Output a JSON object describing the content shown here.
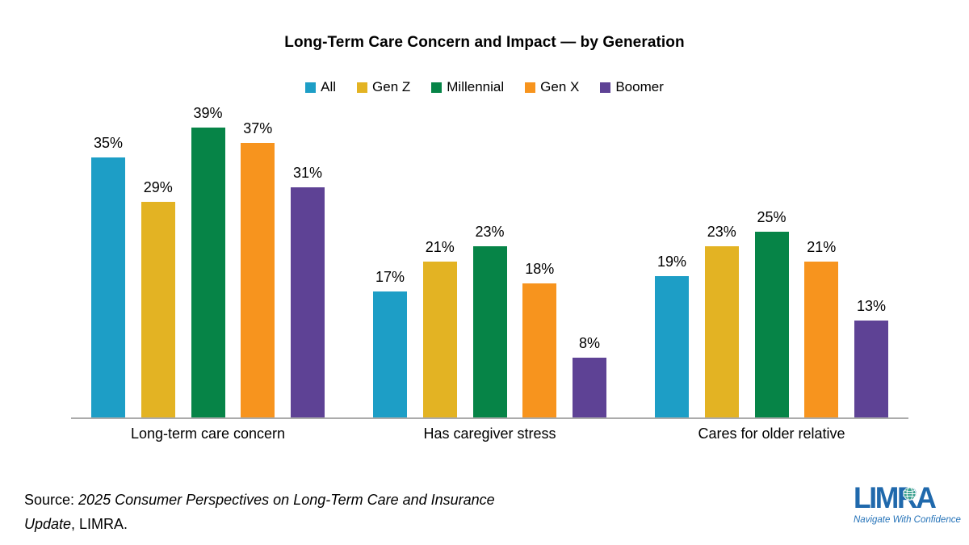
{
  "title": "Long-Term Care Concern and Impact — by Generation",
  "chart_data": {
    "type": "bar",
    "title": "Long-Term Care Concern and Impact — by Generation",
    "categories": [
      "Long-term care concern",
      "Has caregiver stress",
      "Cares for older relative"
    ],
    "series": [
      {
        "name": "All",
        "color": "#1d9ec6",
        "values": [
          35,
          17,
          19
        ]
      },
      {
        "name": "Gen Z",
        "color": "#e3b323",
        "values": [
          29,
          21,
          23
        ]
      },
      {
        "name": "Millennial",
        "color": "#068447",
        "values": [
          39,
          23,
          25
        ]
      },
      {
        "name": "Gen X",
        "color": "#f7941e",
        "values": [
          37,
          18,
          21
        ]
      },
      {
        "name": "Boomer",
        "color": "#5e4295",
        "values": [
          31,
          8,
          13
        ]
      }
    ],
    "value_suffix": "%",
    "data_labels": true,
    "ylim": [
      0,
      40
    ],
    "grid": false,
    "legend_position": "top",
    "axis_line_color": "#ababab"
  },
  "source": {
    "prefix": "Source: ",
    "citation": "2025 Consumer Perspectives on Long-Term Care and Insurance Update",
    "suffix": ", LIMRA."
  },
  "logo": {
    "text": "LIMRA",
    "tagline": "Navigate With Confidence",
    "brand_color": "#2069ac",
    "globe_color": "#3ba18f",
    "globe_icon": "globe-icon"
  }
}
